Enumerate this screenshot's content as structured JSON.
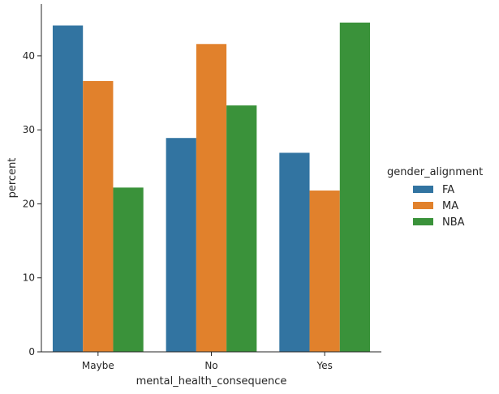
{
  "chart_data": {
    "type": "bar",
    "title": "",
    "xlabel": "mental_health_consequence",
    "ylabel": "percent",
    "categories": [
      "Maybe",
      "No",
      "Yes"
    ],
    "ylim": [
      0,
      47
    ],
    "yticks": [
      0,
      10,
      20,
      30,
      40
    ],
    "grid": false,
    "legend": {
      "title": "gender_alignment",
      "placement": "right"
    },
    "series": [
      {
        "name": "FA",
        "color": "#3274a1",
        "values": [
          44.1,
          28.9,
          26.9
        ]
      },
      {
        "name": "MA",
        "color": "#e1812c",
        "values": [
          36.6,
          41.6,
          21.8
        ]
      },
      {
        "name": "NBA",
        "color": "#3a923a",
        "values": [
          22.2,
          33.3,
          44.5
        ]
      }
    ]
  }
}
